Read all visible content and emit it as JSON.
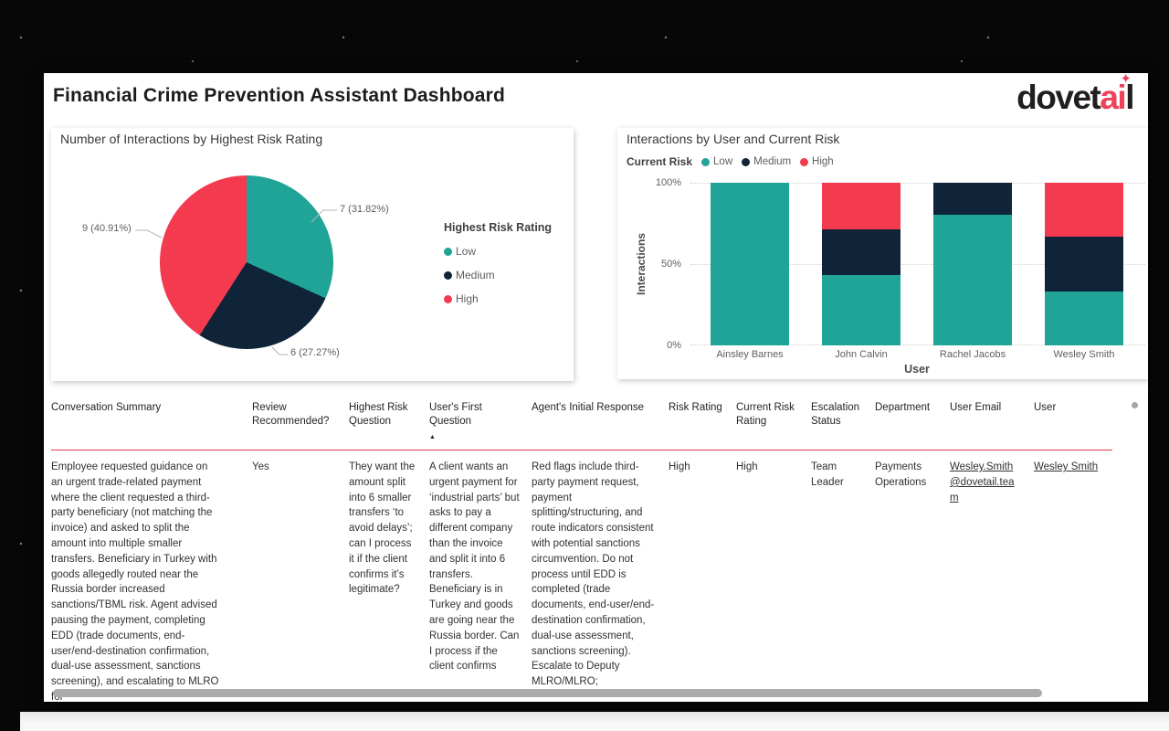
{
  "header": {
    "title": "Financial Crime Prevention Assistant Dashboard",
    "logo": {
      "part1": "dovet",
      "accent": "ai",
      "part2": "l"
    }
  },
  "icons": {
    "sort_asc": "▲",
    "sparkle": "✦"
  },
  "colors": {
    "low": "#20A497",
    "medium": "#0F2438",
    "high": "#F43A4F",
    "table_header_line": "#E8384F",
    "scrollbar": "#ABABAB"
  },
  "chart_data": [
    {
      "type": "pie",
      "title": "Number of Interactions by Highest Risk Rating",
      "legend_title": "Highest Risk Rating",
      "legend_position": "right",
      "slices": [
        {
          "name": "Low",
          "value": 7,
          "pct": 31.82,
          "label": "7 (31.82%)",
          "color_key": "low"
        },
        {
          "name": "Medium",
          "value": 6,
          "pct": 27.27,
          "label": "6 (27.27%)",
          "color_key": "medium"
        },
        {
          "name": "High",
          "value": 9,
          "pct": 40.91,
          "label": "9 (40.91%)",
          "color_key": "high"
        }
      ]
    },
    {
      "type": "bar",
      "subtype": "100%-stacked-column",
      "title": "Interactions by User and Current Risk",
      "legend_title": "Current Risk",
      "legend_position": "top",
      "categories": [
        "Ainsley Barnes",
        "John Calvin",
        "Rachel Jacobs",
        "Wesley Smith"
      ],
      "series": [
        {
          "name": "Low",
          "color_key": "low",
          "values": [
            100,
            43,
            80.5,
            33.4
          ]
        },
        {
          "name": "Medium",
          "color_key": "medium",
          "values": [
            0,
            28.5,
            19.5,
            33.3
          ]
        },
        {
          "name": "High",
          "color_key": "high",
          "values": [
            0,
            28.5,
            0,
            33.3
          ]
        }
      ],
      "xlabel": "User",
      "ylabel": "Interactions",
      "ylim": [
        "0%",
        "100%"
      ],
      "yticks": [
        "100%",
        "50%",
        "0%"
      ],
      "grid": "dotted horizontal"
    }
  ],
  "table": {
    "columns": [
      "Conversation Summary",
      "Review Recommended?",
      "Highest Risk Question",
      "User's First Question",
      "Agent's Initial Response",
      "Risk Rating",
      "Current Risk Rating",
      "Escalation Status",
      "Department",
      "User Email",
      "User"
    ],
    "sorted_column": "User's First Question",
    "row": {
      "summary": "Employee requested guidance on an urgent trade-related payment where the client requested a third-party beneficiary (not matching the invoice) and asked to split the amount into multiple smaller transfers. Beneficiary in Turkey with goods allegedly routed near the Russia border increased sanctions/TBML risk. Agent advised pausing the payment, completing EDD (trade documents, end-user/end-destination confirmation, dual-use assessment, sanctions screening), and escalating to MLRO for",
      "review_recommended": "Yes",
      "highest_risk_question": "They want the amount split into 6 smaller transfers ‘to avoid delays’; can I process it if the client confirms it’s legitimate?",
      "users_first_question": "A client wants an urgent payment for ‘industrial parts’ but asks to pay a different company than the invoice and split it into 6 transfers. Beneficiary is in Turkey and goods are going near the Russia border. Can I process if the client confirms",
      "agents_initial_response": "Red flags include third-party payment request, payment splitting/structuring, and route indicators consistent with potential sanctions circumvention. Do not process until EDD is completed (trade documents, end-user/end-destination confirmation, dual-use assessment, sanctions screening). Escalate to Deputy MLRO/MLRO;",
      "risk_rating": "High",
      "current_risk_rating": "High",
      "escalation_status": "Team Leader",
      "department": "Payments Operations",
      "user_email": "Wesley.Smith@dovetail.team",
      "user": "Wesley Smith"
    }
  }
}
